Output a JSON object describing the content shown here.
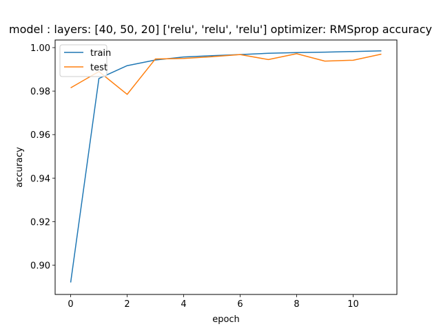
{
  "chart_data": {
    "type": "line",
    "title": "model : layers: [40, 50, 20] ['relu', 'relu', 'relu'] optimizer: RMSprop accuracy",
    "xlabel": "epoch",
    "ylabel": "accuracy",
    "xlim": [
      -0.55,
      11.55
    ],
    "ylim": [
      0.8865,
      1.0035
    ],
    "xticks": [
      0,
      2,
      4,
      6,
      8,
      10
    ],
    "yticks": [
      0.9,
      0.92,
      0.94,
      0.96,
      0.98,
      1.0
    ],
    "ytick_labels": [
      "0.90",
      "0.92",
      "0.94",
      "0.96",
      "0.98",
      "1.00"
    ],
    "grid": false,
    "legend_position": "top-left",
    "x": [
      0,
      1,
      2,
      3,
      4,
      5,
      6,
      7,
      8,
      9,
      10,
      11
    ],
    "series": [
      {
        "name": "train",
        "color": "#1f77b4",
        "values": [
          0.892,
          0.9858,
          0.9917,
          0.9943,
          0.9957,
          0.9963,
          0.9968,
          0.9974,
          0.9977,
          0.9979,
          0.9982,
          0.9985
        ]
      },
      {
        "name": "test",
        "color": "#ff7f0e",
        "values": [
          0.9815,
          0.989,
          0.9785,
          0.9948,
          0.995,
          0.9958,
          0.9968,
          0.9945,
          0.9972,
          0.9938,
          0.9942,
          0.997
        ]
      }
    ]
  }
}
